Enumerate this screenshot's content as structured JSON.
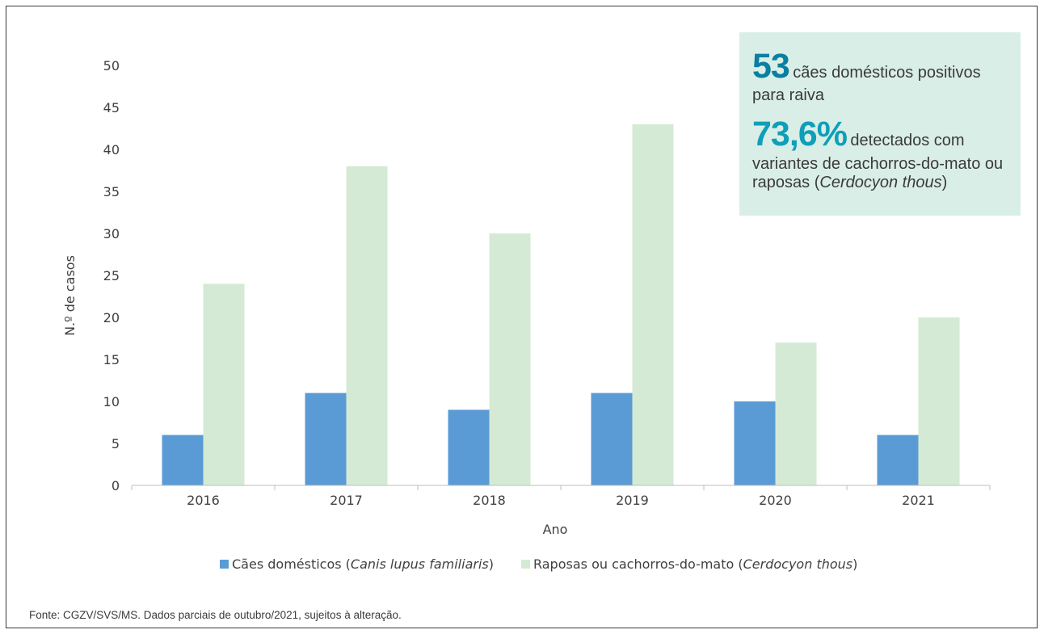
{
  "chart_data": {
    "type": "bar",
    "categories": [
      "2016",
      "2017",
      "2018",
      "2019",
      "2020",
      "2021"
    ],
    "series": [
      {
        "name": "Cães domésticos (Canis lupus familiaris)",
        "values": [
          6,
          11,
          9,
          11,
          10,
          6
        ],
        "color": "#5b9bd5"
      },
      {
        "name": "Raposas ou cachorros-do-mato (Cerdocyon thous)",
        "values": [
          24,
          38,
          30,
          43,
          17,
          20
        ],
        "color": "#d5ead4"
      }
    ],
    "title": "",
    "xlabel": "Ano",
    "ylabel": "N.º de casos",
    "ylim": [
      0,
      50
    ],
    "yticks": [
      "0",
      "5",
      "10",
      "15",
      "20",
      "25",
      "30",
      "35",
      "40",
      "45",
      "50"
    ],
    "grid": false,
    "legend_position": "bottom",
    "legend": [
      {
        "prefix": "Cães domésticos (",
        "italic": "Canis lupus familiaris",
        "suffix": ")"
      },
      {
        "prefix": "Raposas ou cachorros-do-mato (",
        "italic": "Cerdocyon thous",
        "suffix": ")"
      }
    ]
  },
  "infobox": {
    "stat1_number": "53",
    "stat1_text": "cães domésticos positivos para raiva",
    "stat2_number": "73,6%",
    "stat2_text": "detectados com variantes de cachorros-do-mato ou raposas (",
    "stat2_italic": "Cerdocyon thous",
    "stat2_suffix": ")",
    "background": "#d9eee6",
    "accent": "#0a7fa0"
  },
  "source": "Fonte: CGZV/SVS/MS. Dados parciais de outubro/2021, sujeitos à alteração."
}
